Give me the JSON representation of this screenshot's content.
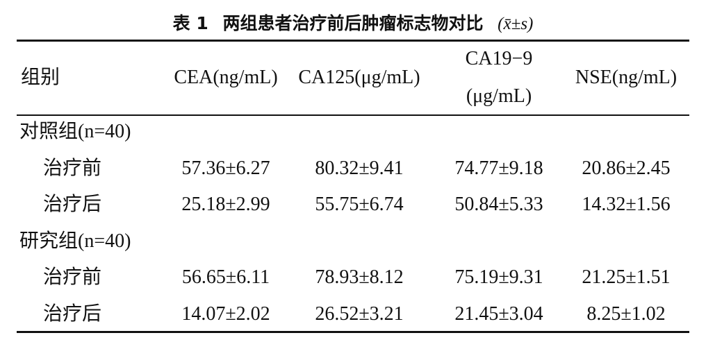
{
  "title": {
    "label": "表 1",
    "text": "两组患者治疗前后肿瘤标志物对比",
    "stat": "(x̄±s)"
  },
  "table": {
    "header": [
      "组别",
      "CEA(ng/mL)",
      "CA125(μg/mL)",
      "CA19−9\n(μg/mL)",
      "NSE(ng/mL)"
    ],
    "groups": [
      {
        "name": "对照组(n=40)",
        "rows": [
          [
            "治疗前",
            "57.36±6.27",
            "80.32±9.41",
            "74.77±9.18",
            "20.86±2.45"
          ],
          [
            "治疗后",
            "25.18±2.99",
            "55.75±6.74",
            "50.84±5.33",
            "14.32±1.56"
          ]
        ]
      },
      {
        "name": "研究组(n=40)",
        "rows": [
          [
            "治疗前",
            "56.65±6.11",
            "78.93±8.12",
            "75.19±9.31",
            "21.25±1.51"
          ],
          [
            "治疗后",
            "14.07±2.02",
            "26.52±3.21",
            "21.45±3.04",
            "8.25±1.02"
          ]
        ]
      }
    ]
  }
}
